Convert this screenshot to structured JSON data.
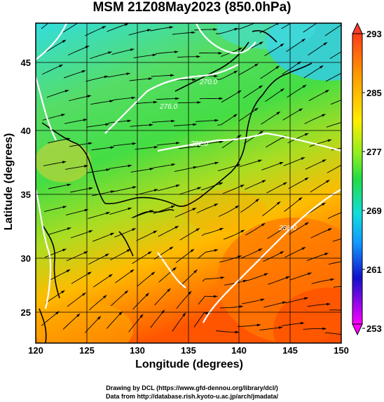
{
  "header": {
    "title": "MSM 21Z08May2023 (850.0hPa)"
  },
  "axes": {
    "x_label": "Longitude (degrees)",
    "y_label": "Latitude  (degrees)",
    "x_ticks": [
      "120",
      "125",
      "130",
      "135",
      "140",
      "145",
      "150"
    ],
    "y_ticks": [
      "45",
      "40",
      "35",
      "30",
      "25"
    ]
  },
  "colorbar": {
    "ticks": [
      "293",
      "285",
      "277",
      "269",
      "261",
      "253"
    ],
    "colors": {
      "max": "#ff3b30",
      "min": "#ff00ff"
    }
  },
  "contour_labels": [
    "270.0",
    "276.0",
    "282.0",
    "288.0"
  ],
  "footer": {
    "line1": "Drawing by DCL (https://www.gfd-dennou.org/library/dcl/)",
    "line2": "Data from http://database.rish.kyoto-u.ac.jp/arch/jmadata/"
  }
}
